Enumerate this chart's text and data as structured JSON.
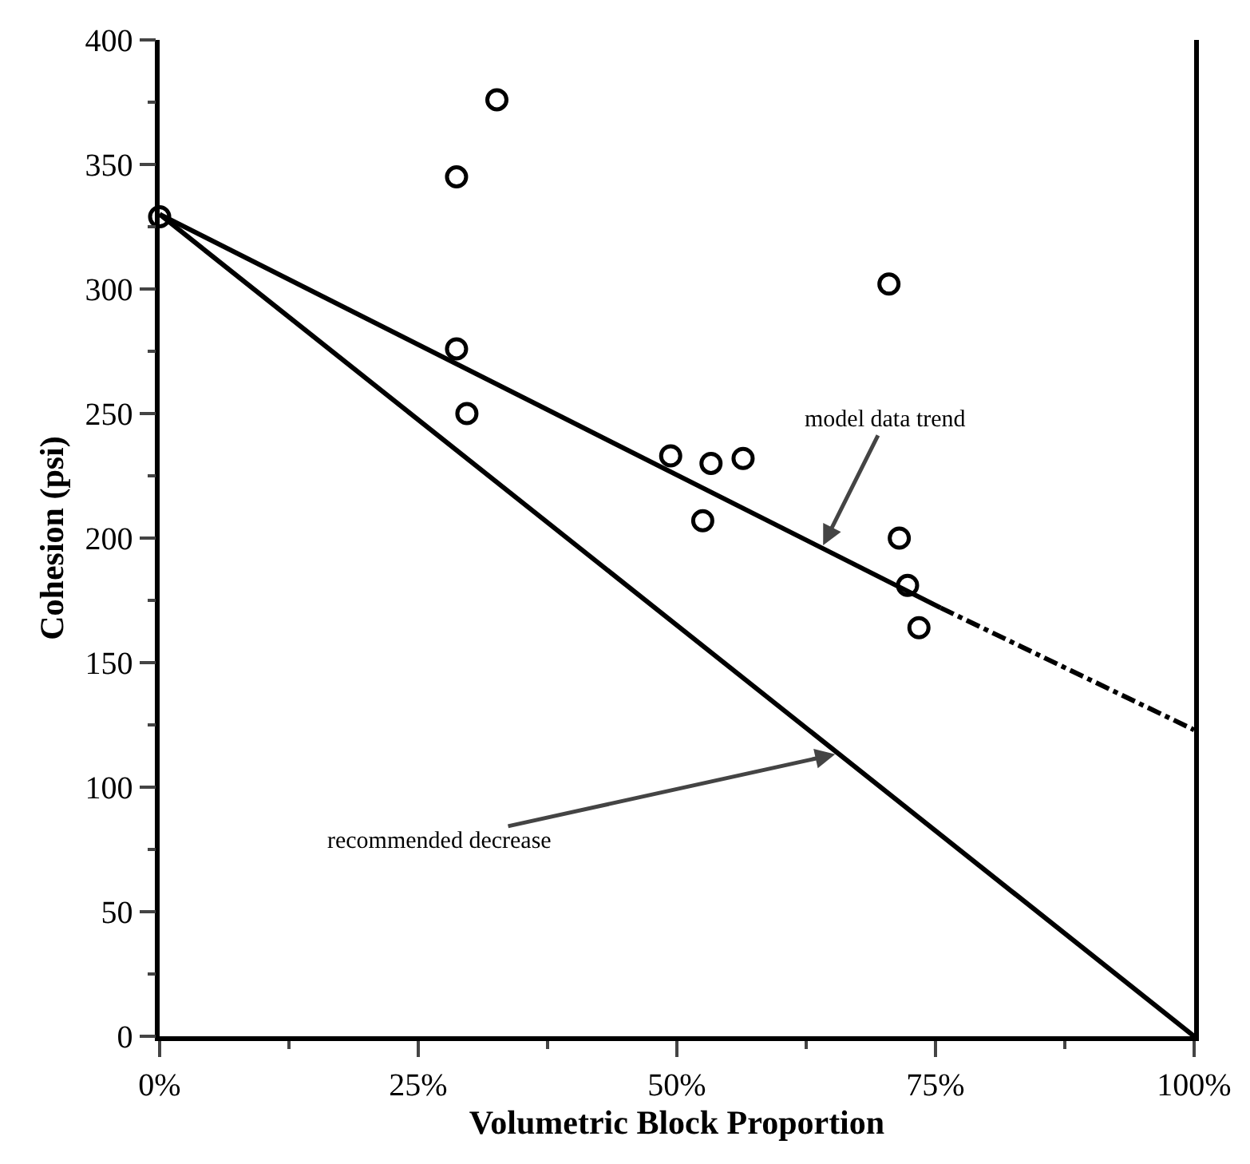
{
  "chart_data": {
    "type": "scatter",
    "xlabel": "Volumetric Block Proportion",
    "ylabel": "Cohesion (psi)",
    "xlim": [
      0,
      100
    ],
    "xticks": [
      {
        "value": 0,
        "label": "0%"
      },
      {
        "value": 25,
        "label": "25%"
      },
      {
        "value": 50,
        "label": "50%"
      },
      {
        "value": 75,
        "label": "75%"
      },
      {
        "value": 100,
        "label": "100%"
      }
    ],
    "ylim": [
      0,
      400
    ],
    "yticks": [
      0,
      50,
      100,
      150,
      200,
      250,
      300,
      350,
      400
    ],
    "grid": false,
    "marker": "circle",
    "series": [
      {
        "type": "scatter",
        "color": "#000000",
        "x": [
          0,
          32.6,
          28.7,
          28.7,
          29.7,
          49.4,
          53.3,
          56.4,
          52.5,
          70.5,
          71.5,
          72.3,
          73.4
        ],
        "values": [
          329,
          376,
          345,
          276,
          250,
          233,
          230,
          232,
          207,
          302,
          200,
          181,
          164
        ]
      },
      {
        "type": "line",
        "color": "#000000",
        "line_style": "solid",
        "marker": "none",
        "x": [
          0,
          75.5
        ],
        "values": [
          330,
          172
        ]
      },
      {
        "type": "line",
        "color": "#000000",
        "line_style": "dashed",
        "marker": "none",
        "x": [
          75.5,
          100
        ],
        "values": [
          172,
          123
        ]
      },
      {
        "type": "line",
        "color": "#000000",
        "line_style": "solid",
        "marker": "none",
        "x": [
          0,
          100
        ],
        "values": [
          330,
          0
        ]
      }
    ],
    "annotations": [
      {
        "text": "model data trend",
        "x": 64,
        "y": 196
      },
      {
        "text": "recommended decrease",
        "x": 65.6,
        "y": 113.5
      }
    ]
  }
}
